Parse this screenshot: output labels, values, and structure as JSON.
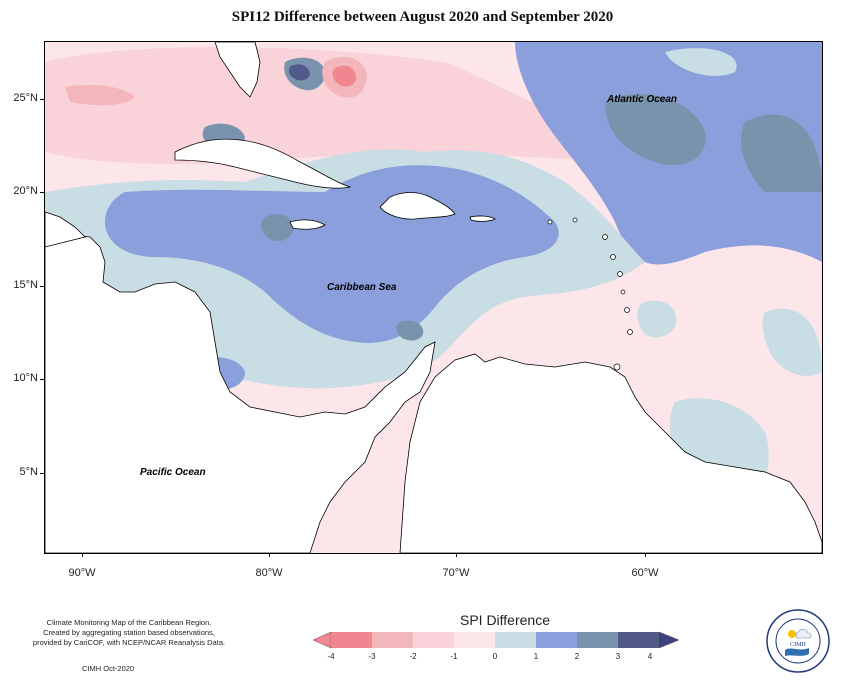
{
  "title": "SPI12 Difference between August 2020 and September 2020",
  "axes": {
    "lat_ticks": [
      "25°N",
      "20°N",
      "15°N",
      "10°N",
      "5°N"
    ],
    "lon_ticks": [
      "90°W",
      "80°W",
      "70°W",
      "60°W"
    ]
  },
  "labels": {
    "atlantic": "Atlantic Ocean",
    "caribbean": "Caribbean Sea",
    "pacific": "Pacific Ocean"
  },
  "legend": {
    "title": "SPI Difference",
    "ticks": [
      "-4",
      "-3",
      "-2",
      "-1",
      "0",
      "1",
      "2",
      "3",
      "4"
    ],
    "colors": [
      "#f0868f",
      "#f2b6bb",
      "#f9d3d9",
      "#fce6ea",
      "#c8dde4",
      "#8b9fdc",
      "#7a93ad",
      "#515a8a"
    ]
  },
  "credit": {
    "line1": "Climate Monitoring Map of the Caribbean Region.",
    "line2": "Created by aggregating station based observations,",
    "line3": "provided by CariCOF, with NCEP/NCAR Reanalysis Data.",
    "date": "CIMH Oct-2020"
  },
  "logo": {
    "text": "CIMH",
    "icon": "cimh-logo"
  }
}
